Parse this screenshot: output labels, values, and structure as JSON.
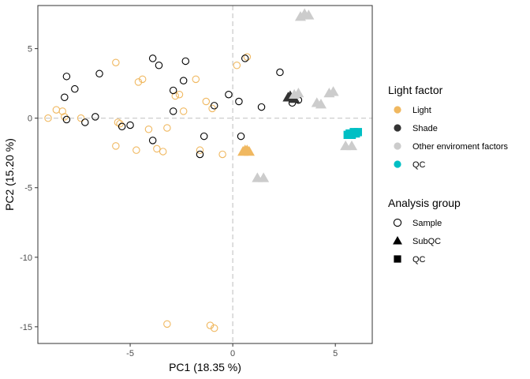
{
  "chart_data": {
    "type": "scatter",
    "title": "",
    "xlabel": "PC1 (18.35 %)",
    "ylabel": "PC2 (15.20 %)",
    "xlim": [
      -9.5,
      6.8
    ],
    "ylim": [
      -16.2,
      8.1
    ],
    "x_ticks": [
      -5,
      0,
      5
    ],
    "y_ticks": [
      5,
      0,
      -5,
      -10,
      -15
    ],
    "reference_lines": {
      "x": 0,
      "y": 0,
      "style": "dashed",
      "color": "#c8c8c8"
    },
    "grid": false,
    "legend_placement": "right",
    "legends": [
      {
        "title": "Light factor",
        "entries": [
          {
            "label": "Light",
            "color": "#F0B860",
            "shape": "circle"
          },
          {
            "label": "Shade",
            "color": "#333333",
            "shape": "circle"
          },
          {
            "label": "Other enviroment factors",
            "color": "#CCCCCC",
            "shape": "circle"
          },
          {
            "label": "QC",
            "color": "#00BFC4",
            "shape": "circle"
          }
        ]
      },
      {
        "title": "Analysis group",
        "entries": [
          {
            "label": "Sample",
            "shape": "open-circle"
          },
          {
            "label": "SubQC",
            "shape": "triangle"
          },
          {
            "label": "QC",
            "shape": "square"
          }
        ]
      }
    ],
    "series": [
      {
        "name": "Light",
        "group": "Sample",
        "color": "#F0B860",
        "shape": "open-circle",
        "points": [
          [
            -9.0,
            0.0
          ],
          [
            -8.6,
            0.6
          ],
          [
            -8.3,
            0.5
          ],
          [
            -8.2,
            0.1
          ],
          [
            -7.4,
            0.0
          ],
          [
            -5.7,
            4.0
          ],
          [
            -5.6,
            -0.3
          ],
          [
            -5.5,
            -0.4
          ],
          [
            -5.7,
            -2.0
          ],
          [
            -4.6,
            2.6
          ],
          [
            -4.4,
            2.8
          ],
          [
            -4.7,
            -2.3
          ],
          [
            -4.1,
            -0.8
          ],
          [
            -3.7,
            -2.2
          ],
          [
            -3.2,
            -0.7
          ],
          [
            -3.4,
            -2.4
          ],
          [
            -2.8,
            1.6
          ],
          [
            -2.6,
            1.7
          ],
          [
            -2.4,
            0.5
          ],
          [
            -1.8,
            2.8
          ],
          [
            -1.6,
            -2.3
          ],
          [
            -1.3,
            1.2
          ],
          [
            -1.0,
            0.7
          ],
          [
            -0.5,
            -2.6
          ],
          [
            0.2,
            3.8
          ],
          [
            0.7,
            4.4
          ],
          [
            -3.2,
            -14.8
          ],
          [
            -1.1,
            -14.9
          ],
          [
            -0.9,
            -15.1
          ]
        ]
      },
      {
        "name": "Shade",
        "group": "Sample",
        "color": "#000000",
        "shape": "open-circle",
        "points": [
          [
            -8.1,
            3.0
          ],
          [
            -8.2,
            1.5
          ],
          [
            -7.7,
            2.1
          ],
          [
            -8.1,
            -0.1
          ],
          [
            -7.2,
            -0.3
          ],
          [
            -6.5,
            3.2
          ],
          [
            -6.7,
            0.1
          ],
          [
            -5.4,
            -0.6
          ],
          [
            -5.0,
            -0.5
          ],
          [
            -3.9,
            4.3
          ],
          [
            -3.6,
            3.8
          ],
          [
            -2.9,
            2.0
          ],
          [
            -2.4,
            2.7
          ],
          [
            -2.3,
            4.1
          ],
          [
            -3.9,
            -1.6
          ],
          [
            -2.9,
            0.5
          ],
          [
            -1.4,
            -1.3
          ],
          [
            -1.6,
            -2.6
          ],
          [
            -0.9,
            0.9
          ],
          [
            -0.2,
            1.7
          ],
          [
            0.3,
            1.2
          ],
          [
            0.6,
            4.3
          ],
          [
            1.4,
            0.8
          ],
          [
            2.3,
            3.3
          ],
          [
            2.9,
            1.1
          ],
          [
            3.2,
            1.3
          ],
          [
            0.4,
            -1.3
          ]
        ]
      },
      {
        "name": "Light",
        "group": "SubQC",
        "color": "#F0B860",
        "shape": "triangle",
        "points": [
          [
            0.5,
            -2.4
          ],
          [
            0.6,
            -2.3
          ],
          [
            0.7,
            -2.3
          ],
          [
            0.8,
            -2.4
          ]
        ]
      },
      {
        "name": "Shade",
        "group": "SubQC",
        "color": "#333333",
        "shape": "triangle",
        "points": [
          [
            2.7,
            1.5
          ],
          [
            2.8,
            1.6
          ],
          [
            3.0,
            1.4
          ]
        ]
      },
      {
        "name": "Other enviroment factors",
        "group": "SubQC",
        "color": "#CCCCCC",
        "shape": "triangle",
        "points": [
          [
            3.3,
            7.3
          ],
          [
            3.5,
            7.5
          ],
          [
            3.7,
            7.4
          ],
          [
            3.0,
            1.7
          ],
          [
            3.2,
            1.8
          ],
          [
            4.1,
            1.1
          ],
          [
            4.3,
            1.0
          ],
          [
            4.7,
            1.8
          ],
          [
            4.9,
            1.9
          ],
          [
            1.2,
            -4.3
          ],
          [
            1.5,
            -4.3
          ],
          [
            5.5,
            -2.0
          ],
          [
            5.8,
            -2.0
          ]
        ]
      },
      {
        "name": "QC",
        "group": "QC",
        "color": "#00BFC4",
        "shape": "square",
        "points": [
          [
            5.6,
            -1.2
          ],
          [
            5.7,
            -1.1
          ],
          [
            5.8,
            -1.2
          ],
          [
            5.9,
            -1.0
          ],
          [
            6.0,
            -1.1
          ],
          [
            6.1,
            -1.0
          ]
        ]
      }
    ]
  }
}
